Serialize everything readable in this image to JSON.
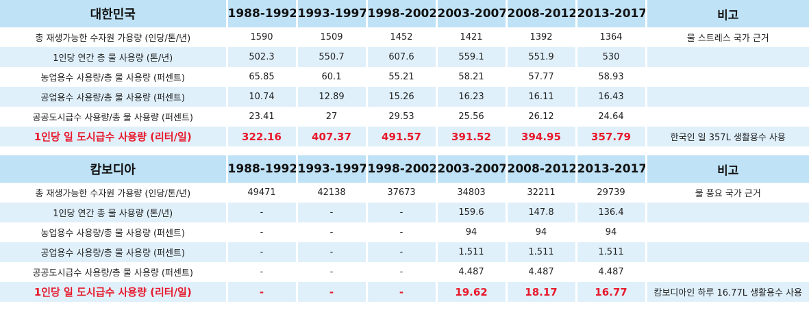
{
  "korea": {
    "country": "대한민국",
    "periods": [
      "1988-1992",
      "1993-1997",
      "1998-2002",
      "2003-2007",
      "2008-2012",
      "2013-2017"
    ],
    "note_header": "비고",
    "rows": [
      {
        "label": "총 재생가능한 수자원 가용량 (인당/톤/년)",
        "values": [
          "1590",
          "1509",
          "1452",
          "1421",
          "1392",
          "1364"
        ],
        "note": "물 스트레스 국가 근거"
      },
      {
        "label": "1인당 연간 총 물 사용량 (톤/년)",
        "values": [
          "502.3",
          "550.7",
          "607.6",
          "559.1",
          "551.9",
          "530"
        ],
        "note": ""
      },
      {
        "label": "농업용수 사용량/총 물 사용량 (퍼센트)",
        "values": [
          "65.85",
          "60.1",
          "55.21",
          "58.21",
          "57.77",
          "58.93"
        ],
        "note": ""
      },
      {
        "label": "공업용수 사용량/총 물 사용량 (퍼센트)",
        "values": [
          "10.74",
          "12.89",
          "15.26",
          "16.23",
          "16.11",
          "16.43"
        ],
        "note": ""
      },
      {
        "label": "공공도시급수 사용량/총 물 사용량 (퍼센트)",
        "values": [
          "23.41",
          "27",
          "29.53",
          "25.56",
          "26.12",
          "24.64"
        ],
        "note": ""
      },
      {
        "label": "1인당 일 도시급수 사용량 (리터/일)",
        "values": [
          "322.16",
          "407.37",
          "491.57",
          "391.52",
          "394.95",
          "357.79"
        ],
        "note": "한국인 일 357L 생활용수 사용"
      }
    ]
  },
  "cambodia": {
    "country": "캄보디아",
    "periods": [
      "1988-1992",
      "1993-1997",
      "1998-2002",
      "2003-2007",
      "2008-2012",
      "2013-2017"
    ],
    "note_header": "비고",
    "rows": [
      {
        "label": "총 재생가능한 수자원 가용량 (인당/톤/년)",
        "values": [
          "49471",
          "42138",
          "37673",
          "34803",
          "32211",
          "29739"
        ],
        "note": "물 풍요 국가 근거"
      },
      {
        "label": "1인당 연간 총 물 사용량 (톤/년)",
        "values": [
          "-",
          "-",
          "-",
          "159.6",
          "147.8",
          "136.4"
        ],
        "note": ""
      },
      {
        "label": "농업용수 사용량/총 물 사용량 (퍼센트)",
        "values": [
          "-",
          "-",
          "-",
          "94",
          "94",
          "94"
        ],
        "note": ""
      },
      {
        "label": "공업용수 사용량/총 물 사용량 (퍼센트)",
        "values": [
          "-",
          "-",
          "-",
          "1.511",
          "1.511",
          "1.511"
        ],
        "note": ""
      },
      {
        "label": "공공도시급수 사용량/총 물 사용량 (퍼센트)",
        "values": [
          "-",
          "-",
          "-",
          "4.487",
          "4.487",
          "4.487"
        ],
        "note": ""
      },
      {
        "label": "1인당 일 도시급수 사용량 (리터/일)",
        "values": [
          "-",
          "-",
          "-",
          "19.62",
          "18.17",
          "16.77"
        ],
        "note": "캄보디아인 하루 16.77L 생활용수 사용"
      }
    ]
  }
}
